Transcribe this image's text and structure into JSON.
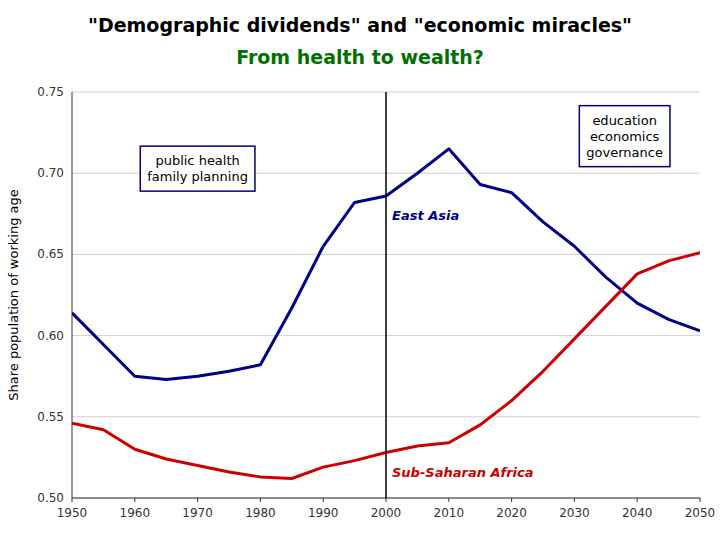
{
  "chart_data": {
    "type": "line",
    "title": "\"Demographic dividends\" and \"economic miracles\"",
    "subtitle": "From health to wealth?",
    "y_label": "Share population of working age",
    "xlim": [
      1950,
      2050
    ],
    "xticks": [
      1950,
      1960,
      1970,
      1980,
      1990,
      2000,
      2010,
      2020,
      2030,
      2040,
      2050
    ],
    "ylim": [
      0.5,
      0.75
    ],
    "yticks": [
      {
        "value": 0.5,
        "label": "0.50"
      },
      0.55,
      {
        "value": 0.6,
        "label": "0.60"
      },
      0.65,
      {
        "value": 0.7,
        "label": "0.70"
      },
      0.75
    ],
    "grid": true,
    "vline_x": 2000,
    "series": [
      {
        "name": "East Asia",
        "color": "#00008B",
        "x": [
          1950,
          1960,
          1965,
          1970,
          1975,
          1980,
          1985,
          1990,
          1995,
          2000,
          2005,
          2010,
          2015,
          2020,
          2025,
          2030,
          2035,
          2040,
          2045,
          2050
        ],
        "values": [
          0.614,
          0.575,
          0.573,
          0.575,
          0.578,
          0.582,
          0.617,
          0.655,
          0.682,
          0.686,
          0.7,
          0.715,
          0.693,
          0.688,
          0.67,
          0.655,
          0.636,
          0.62,
          0.61,
          0.603
        ]
      },
      {
        "name": "Sub-Saharan Africa",
        "color": "#CC0000",
        "x": [
          1950,
          1955,
          1960,
          1965,
          1970,
          1975,
          1980,
          1985,
          1990,
          1995,
          2000,
          2005,
          2010,
          2015,
          2020,
          2025,
          2030,
          2035,
          2040,
          2045,
          2050
        ],
        "values": [
          0.546,
          0.542,
          0.53,
          0.524,
          0.52,
          0.516,
          0.513,
          0.512,
          0.519,
          0.523,
          0.528,
          0.532,
          0.534,
          0.545,
          0.56,
          0.578,
          0.598,
          0.618,
          0.638,
          0.646,
          0.651
        ]
      }
    ],
    "annotations": [
      "public health\nfamily planning",
      "education\neconomics\ngovernance"
    ]
  }
}
